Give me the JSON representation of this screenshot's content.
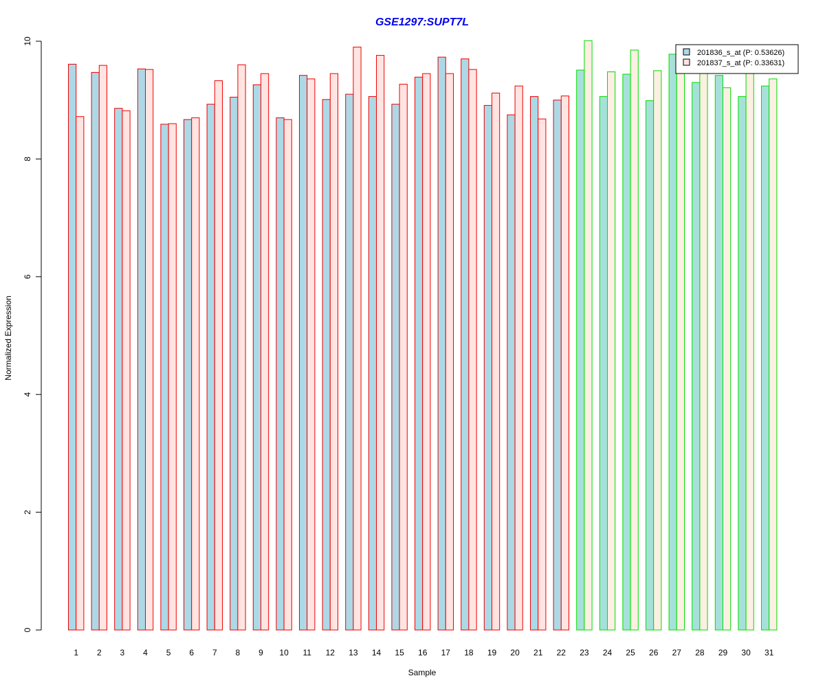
{
  "colors": {
    "title": "#0000ee",
    "series1_fill": "#add8e6",
    "series1_fill_group2": "#a6e1d9",
    "series2_fill": "#ffe4e1",
    "series2_fill_group2": "#fbf0e1",
    "group1_border": "#ee0000",
    "group2_border": "#00dd00",
    "axis": "#000000"
  },
  "chart_data": {
    "type": "bar",
    "title": "GSE1297:SUPT7L",
    "xlabel": "Sample",
    "ylabel": "Normalized Expression",
    "ylim": [
      0,
      10
    ],
    "yticks": [
      "0",
      "2",
      "4",
      "6",
      "8",
      "10"
    ],
    "categories": [
      "1",
      "2",
      "3",
      "4",
      "5",
      "6",
      "7",
      "8",
      "9",
      "10",
      "11",
      "12",
      "13",
      "14",
      "15",
      "16",
      "17",
      "18",
      "19",
      "20",
      "21",
      "22",
      "23",
      "24",
      "25",
      "26",
      "27",
      "28",
      "29",
      "30",
      "31"
    ],
    "groups": [
      {
        "samples": "1-22",
        "border": "red"
      },
      {
        "samples": "23-31",
        "border": "green"
      }
    ],
    "legend_position": "top-right",
    "grid": false,
    "series": [
      {
        "name": "201836_s_at (P: 0.53626)",
        "values": [
          9.61,
          9.47,
          8.86,
          9.53,
          8.59,
          8.67,
          8.93,
          9.05,
          9.26,
          8.7,
          9.42,
          9.01,
          9.1,
          9.06,
          8.93,
          9.39,
          9.73,
          9.7,
          8.91,
          8.75,
          9.06,
          9.0,
          9.51,
          9.06,
          9.44,
          8.99,
          9.78,
          9.3,
          9.42,
          9.06,
          9.24
        ]
      },
      {
        "name": "201837_s_at (P: 0.33631)",
        "values": [
          8.72,
          9.59,
          8.82,
          9.52,
          8.6,
          8.7,
          9.33,
          9.6,
          9.45,
          8.67,
          9.36,
          9.45,
          9.9,
          9.76,
          9.27,
          9.45,
          9.45,
          9.52,
          9.12,
          9.24,
          8.68,
          9.07,
          10.01,
          9.48,
          9.85,
          9.5,
          9.94,
          9.72,
          9.21,
          9.68,
          9.36
        ]
      }
    ]
  }
}
